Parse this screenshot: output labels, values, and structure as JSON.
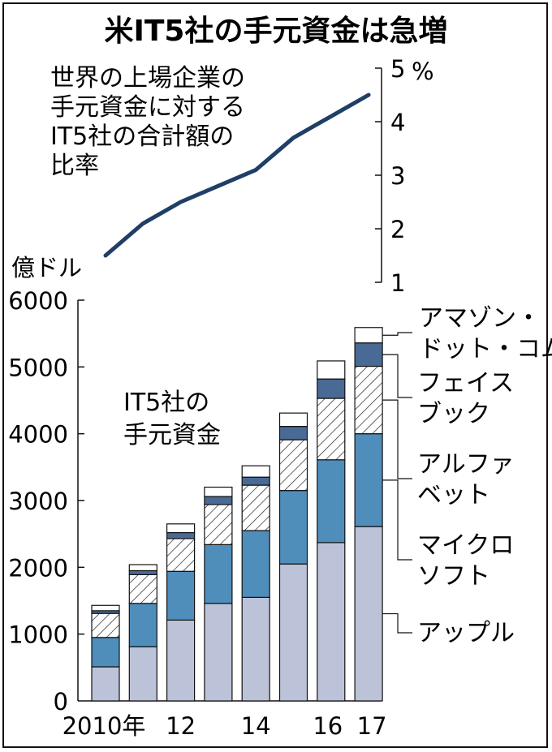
{
  "chart_data": [
    {
      "type": "line",
      "title": "米IT5社の手元資金は急増",
      "subtitle_lines": [
        "世界の上場企業の",
        "手元資金に対する",
        "IT5社の合計額の",
        "比率"
      ],
      "ylabel": "%",
      "yticks": [
        "5",
        "4",
        "3",
        "2",
        "1"
      ],
      "ylim": [
        1,
        5
      ],
      "x": [
        2010,
        2011,
        2012,
        2013,
        2014,
        2015,
        2016,
        2017
      ],
      "values": [
        1.5,
        2.1,
        2.5,
        2.8,
        3.1,
        3.7,
        4.1,
        4.5
      ],
      "grid": false,
      "colors": {
        "line": "#1f3f66"
      }
    },
    {
      "type": "bar",
      "stacked": true,
      "ylabel": "億ドル",
      "yticks": [
        "6000",
        "5000",
        "4000",
        "3000",
        "2000",
        "1000",
        "0"
      ],
      "ylim": [
        0,
        6000
      ],
      "xticks": [
        "2010年",
        "12",
        "14",
        "16",
        "17"
      ],
      "x": [
        2010,
        2011,
        2012,
        2013,
        2014,
        2015,
        2016,
        2017
      ],
      "annotation_lines": [
        "IT5社の",
        "手元資金"
      ],
      "series": [
        {
          "name": "アップル",
          "label_lines": [
            "アップル"
          ],
          "values": [
            510,
            810,
            1210,
            1460,
            1550,
            2050,
            2370,
            2610
          ],
          "color": "#bcc3d8"
        },
        {
          "name": "マイクロソフト",
          "label_lines": [
            "マイクロ",
            "ソフト"
          ],
          "values": [
            440,
            650,
            730,
            880,
            1000,
            1100,
            1240,
            1390
          ],
          "color": "#4f8dbb"
        },
        {
          "name": "アルファベット",
          "label_lines": [
            "アルファ",
            "ベット"
          ],
          "values": [
            360,
            430,
            490,
            600,
            680,
            760,
            920,
            1010
          ],
          "color": "hatch"
        },
        {
          "name": "フェイスブック",
          "label_lines": [
            "フェイス",
            "ブック"
          ],
          "values": [
            40,
            60,
            90,
            120,
            120,
            200,
            290,
            350
          ],
          "color": "#4a6a96"
        },
        {
          "name": "アマゾン・ドット・コム",
          "label_lines": [
            "アマゾン・",
            "ドット・コム"
          ],
          "values": [
            80,
            90,
            130,
            140,
            170,
            200,
            270,
            230
          ],
          "color": "#ffffff"
        }
      ],
      "grid": false
    }
  ]
}
